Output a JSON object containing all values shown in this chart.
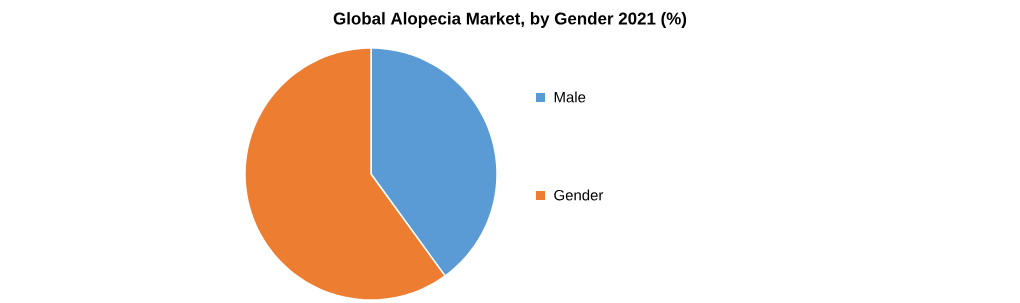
{
  "chart_data": {
    "type": "pie",
    "title": "Global Alopecia Market, by Gender 2021 (%)",
    "categories": [
      "Male",
      "Gender"
    ],
    "values": [
      40,
      60
    ],
    "colors": [
      "#5b9bd5",
      "#ed7d31"
    ],
    "legend": "right"
  }
}
